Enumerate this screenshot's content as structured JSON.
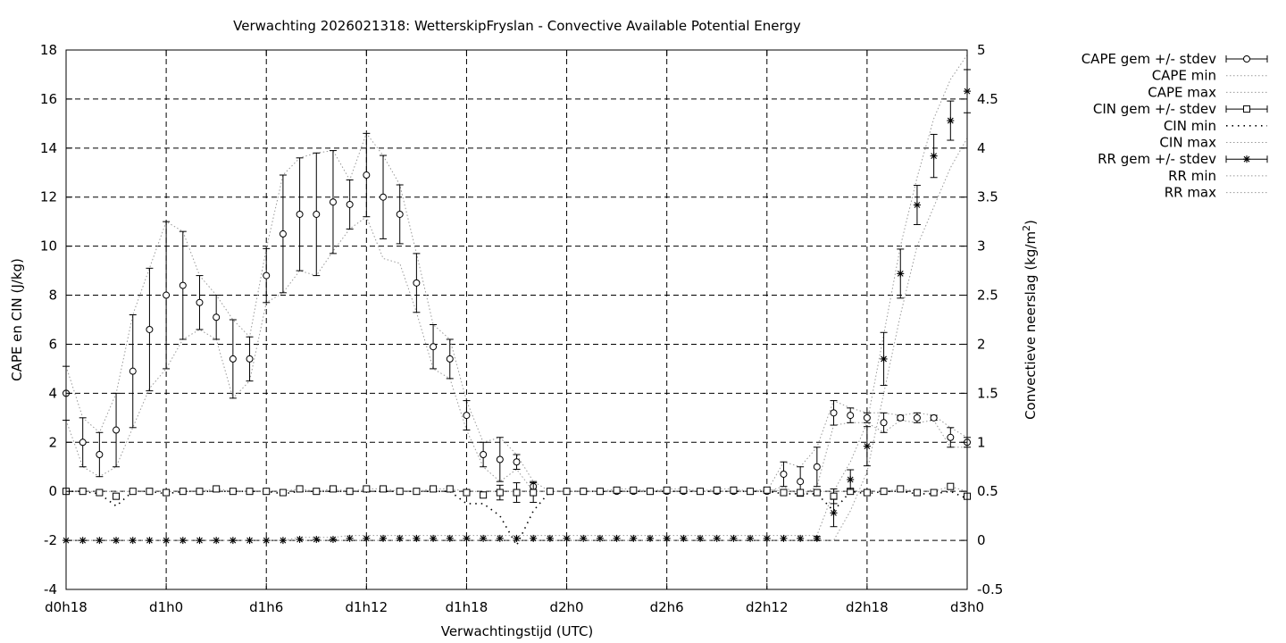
{
  "chart_data": {
    "type": "line",
    "title": "Verwachting 2026021318: WetterskipFryslan - Convective Available Potential Energy",
    "xlabel": "Verwachtingstijd (UTC)",
    "ylabel": "CAPE en CIN (J/kg)",
    "y2label": "Convectieve neerslag (kg/m²)",
    "y2label_main": "Convectieve neerslag (kg/m",
    "y2label_sup": "2",
    "y2label_end": ")",
    "xlim": [
      18,
      72
    ],
    "ylim": [
      -4,
      18
    ],
    "y2lim": [
      -0.5,
      5
    ],
    "grid": true,
    "legend_position": "outside-right",
    "x_ticks": [
      18,
      24,
      30,
      36,
      42,
      48,
      54,
      60,
      66,
      72
    ],
    "x_tick_labels": [
      "d0h18",
      "d1h0",
      "d1h6",
      "d1h12",
      "d1h18",
      "d2h0",
      "d2h6",
      "d2h12",
      "d2h18",
      "d3h0"
    ],
    "y_ticks": [
      -4,
      -2,
      0,
      2,
      4,
      6,
      8,
      10,
      12,
      14,
      16,
      18
    ],
    "y_tick_labels": [
      "-4",
      "-2",
      "0",
      "2",
      "4",
      "6",
      "8",
      "10",
      "12",
      "14",
      "16",
      "18"
    ],
    "y2_ticks": [
      -0.5,
      0,
      0.5,
      1,
      1.5,
      2,
      2.5,
      3,
      3.5,
      4,
      4.5,
      5
    ],
    "y2_tick_labels": [
      "-0.5",
      "0",
      "0.5",
      "1",
      "1.5",
      "2",
      "2.5",
      "3",
      "3.5",
      "4",
      "4.5",
      "5"
    ],
    "x": [
      18,
      19,
      20,
      21,
      22,
      23,
      24,
      25,
      26,
      27,
      28,
      29,
      30,
      31,
      32,
      33,
      34,
      35,
      36,
      37,
      38,
      39,
      40,
      41,
      42,
      43,
      44,
      45,
      46,
      47,
      48,
      49,
      50,
      51,
      52,
      53,
      54,
      55,
      56,
      57,
      58,
      59,
      60,
      61,
      62,
      63,
      64,
      65,
      66,
      67,
      68,
      69,
      70,
      71,
      72
    ],
    "series": [
      {
        "name": "CAPE gem +/- stdev",
        "marker": "circle",
        "axis": "y",
        "values": [
          4,
          2,
          1.5,
          2.5,
          4.9,
          6.6,
          8,
          8.4,
          7.7,
          7.1,
          5.4,
          5.4,
          8.8,
          10.5,
          11.3,
          11.3,
          11.8,
          11.7,
          12.9,
          12,
          11.3,
          8.5,
          5.9,
          5.4,
          3.1,
          1.5,
          1.3,
          1.2,
          0.2,
          0,
          0,
          0,
          0,
          0,
          0,
          0,
          0,
          0,
          0,
          0,
          0,
          0,
          0,
          0.7,
          0.4,
          1,
          3.2,
          3.1,
          3,
          2.8,
          3,
          3,
          3,
          2.2,
          2
        ],
        "stdev": [
          1.1,
          1,
          0.9,
          1.5,
          2.3,
          2.5,
          3,
          2.2,
          1.1,
          0.9,
          1.6,
          0.9,
          1.1,
          2.4,
          2.3,
          2.5,
          2.1,
          1,
          1.7,
          1.7,
          1.2,
          1.2,
          0.9,
          0.8,
          0.6,
          0.5,
          0.9,
          0.3,
          0.2,
          0,
          0,
          0,
          0,
          0,
          0,
          0,
          0,
          0,
          0,
          0,
          0,
          0,
          0,
          0.5,
          0.6,
          0.8,
          0.5,
          0.3,
          0.2,
          0.4,
          0.1,
          0.2,
          0.1,
          0.4,
          0.2
        ]
      },
      {
        "name": "CAPE min",
        "axis": "y",
        "values": [
          2.9,
          1,
          0.6,
          1,
          2.6,
          4.2,
          5,
          6.2,
          6.6,
          6.2,
          3.8,
          4.5,
          7.7,
          8.1,
          9,
          8.8,
          9.8,
          10.7,
          11.2,
          9.5,
          9.3,
          7.3,
          5,
          4.6,
          2.5,
          1,
          0.4,
          0.9,
          0,
          0,
          0,
          0,
          0,
          0,
          0,
          0,
          0,
          0,
          0,
          0,
          0,
          0,
          0,
          0.2,
          -0.2,
          0.2,
          2.7,
          2.8,
          2.8,
          2.4,
          2.9,
          2.8,
          2.9,
          1.8,
          1.8
        ]
      },
      {
        "name": "CAPE max",
        "axis": "y",
        "values": [
          5.1,
          3,
          2.4,
          4,
          7.2,
          9.1,
          11,
          10.6,
          8.8,
          8,
          7,
          6.3,
          9.9,
          12.9,
          13.6,
          13.8,
          13.9,
          12.7,
          14.6,
          13.7,
          12.5,
          9.7,
          6.8,
          6.2,
          3.7,
          2,
          2.2,
          1.5,
          0.4,
          0,
          0,
          0,
          0,
          0,
          0,
          0,
          0,
          0,
          0,
          0,
          0,
          0,
          0,
          1.2,
          1,
          1.8,
          3.7,
          3.4,
          3.2,
          3.2,
          3.1,
          3.2,
          3.1,
          2.6,
          2.2
        ]
      },
      {
        "name": "CIN gem +/- stdev",
        "marker": "square",
        "axis": "y",
        "values": [
          0,
          0,
          -0.05,
          -0.2,
          0,
          0,
          -0.05,
          0,
          0,
          0.1,
          0,
          0,
          0,
          -0.05,
          0.1,
          0,
          0.1,
          0,
          0.1,
          0.1,
          0,
          0,
          0.1,
          0.1,
          -0.05,
          -0.15,
          -0.05,
          -0.05,
          -0.05,
          0,
          0,
          0,
          0,
          0.05,
          0.05,
          0,
          0.05,
          0.05,
          0,
          0.05,
          0.05,
          0,
          0.05,
          -0.05,
          -0.05,
          -0.05,
          -0.2,
          0,
          -0.05,
          0,
          0.1,
          -0.05,
          -0.05,
          0.2,
          -0.2
        ],
        "stdev": [
          0,
          0,
          0,
          0,
          0,
          0,
          0,
          0,
          0,
          0,
          0,
          0,
          0,
          0,
          0,
          0,
          0,
          0,
          0,
          0,
          0,
          0,
          0,
          0,
          0,
          0,
          0.3,
          0.4,
          0.4,
          0,
          0,
          0,
          0,
          0,
          0,
          0,
          0,
          0,
          0,
          0,
          0,
          0,
          0,
          0,
          0,
          0,
          0.3,
          0,
          0,
          0,
          0,
          0,
          0,
          0,
          0
        ]
      },
      {
        "name": "CIN min",
        "axis": "y",
        "values": [
          0,
          0,
          -0.1,
          -0.6,
          0,
          0,
          -0.1,
          0,
          0,
          0,
          0,
          0,
          0,
          -0.1,
          0,
          0,
          0,
          0,
          0,
          0,
          0,
          0,
          0,
          0,
          -0.5,
          -0.5,
          -1,
          -2.2,
          -0.8,
          0,
          0,
          0,
          0,
          0,
          0,
          0,
          0,
          0,
          0,
          0,
          0,
          0,
          0,
          -0.1,
          -0.1,
          -0.1,
          -0.8,
          0,
          -0.1,
          0,
          0,
          -0.1,
          -0.1,
          0,
          -0.3
        ]
      },
      {
        "name": "CIN max",
        "axis": "y",
        "values": [
          0,
          0,
          0,
          0,
          0,
          0,
          0,
          0,
          0,
          0.1,
          0,
          0,
          0,
          0,
          0.1,
          0,
          0.1,
          0,
          0.1,
          0.1,
          0,
          0,
          0.1,
          0.1,
          0,
          0,
          0,
          0,
          0,
          0,
          0,
          0,
          0,
          0.1,
          0.1,
          0,
          0.1,
          0.1,
          0,
          0.1,
          0.1,
          0,
          0.1,
          0,
          0,
          0,
          0,
          0,
          0,
          0,
          0.1,
          0,
          0,
          0.2,
          0
        ]
      },
      {
        "name": "RR gem +/- stdev",
        "marker": "star",
        "axis": "y2",
        "values": [
          0,
          0,
          0,
          0,
          0,
          0,
          0,
          0,
          0,
          0,
          0,
          0,
          0,
          0,
          0.01,
          0.01,
          0.01,
          0.02,
          0.02,
          0.02,
          0.02,
          0.02,
          0.02,
          0.02,
          0.02,
          0.02,
          0.02,
          0.02,
          0.02,
          0.02,
          0.02,
          0.02,
          0.02,
          0.02,
          0.02,
          0.02,
          0.02,
          0.02,
          0.02,
          0.02,
          0.02,
          0.02,
          0.02,
          0.02,
          0.02,
          0.02,
          0.28,
          0.62,
          0.96,
          1.85,
          2.72,
          3.42,
          3.92,
          4.28,
          4.58
        ],
        "stdev": [
          0,
          0,
          0,
          0,
          0,
          0,
          0,
          0,
          0,
          0,
          0,
          0,
          0,
          0,
          0,
          0,
          0,
          0,
          0,
          0,
          0,
          0,
          0,
          0,
          0,
          0,
          0,
          0,
          0,
          0,
          0,
          0,
          0,
          0,
          0,
          0,
          0,
          0,
          0,
          0,
          0,
          0,
          0,
          0,
          0,
          0.02,
          0.14,
          0.1,
          0.2,
          0.27,
          0.25,
          0.2,
          0.22,
          0.2,
          0.22
        ]
      },
      {
        "name": "RR min",
        "axis": "y2",
        "values": [
          0,
          0,
          0,
          0,
          0,
          0,
          0,
          0,
          0,
          0,
          0,
          0,
          0,
          0,
          0,
          0,
          0,
          0,
          0,
          0,
          0,
          0,
          0,
          0,
          0,
          0,
          0,
          0,
          0,
          0,
          0,
          0,
          0,
          0,
          0,
          0,
          0,
          0,
          0,
          0,
          0,
          0,
          0,
          0,
          0,
          0,
          0,
          0.3,
          0.7,
          1.5,
          2.3,
          3,
          3.4,
          3.8,
          4.1
        ]
      },
      {
        "name": "RR max",
        "axis": "y2",
        "values": [
          0,
          0,
          0,
          0,
          0,
          0,
          0,
          0,
          0,
          0,
          0,
          0,
          0,
          0,
          0.03,
          0.03,
          0.03,
          0.05,
          0.05,
          0.05,
          0.05,
          0.05,
          0.05,
          0.05,
          0.05,
          0.05,
          0.05,
          0.05,
          0.05,
          0.05,
          0.05,
          0.05,
          0.05,
          0.05,
          0.05,
          0.05,
          0.05,
          0.05,
          0.05,
          0.05,
          0.05,
          0.05,
          0.05,
          0.05,
          0.05,
          0.05,
          0.5,
          0.8,
          1.2,
          2.1,
          3,
          3.7,
          4.3,
          4.7,
          4.95
        ]
      }
    ]
  }
}
